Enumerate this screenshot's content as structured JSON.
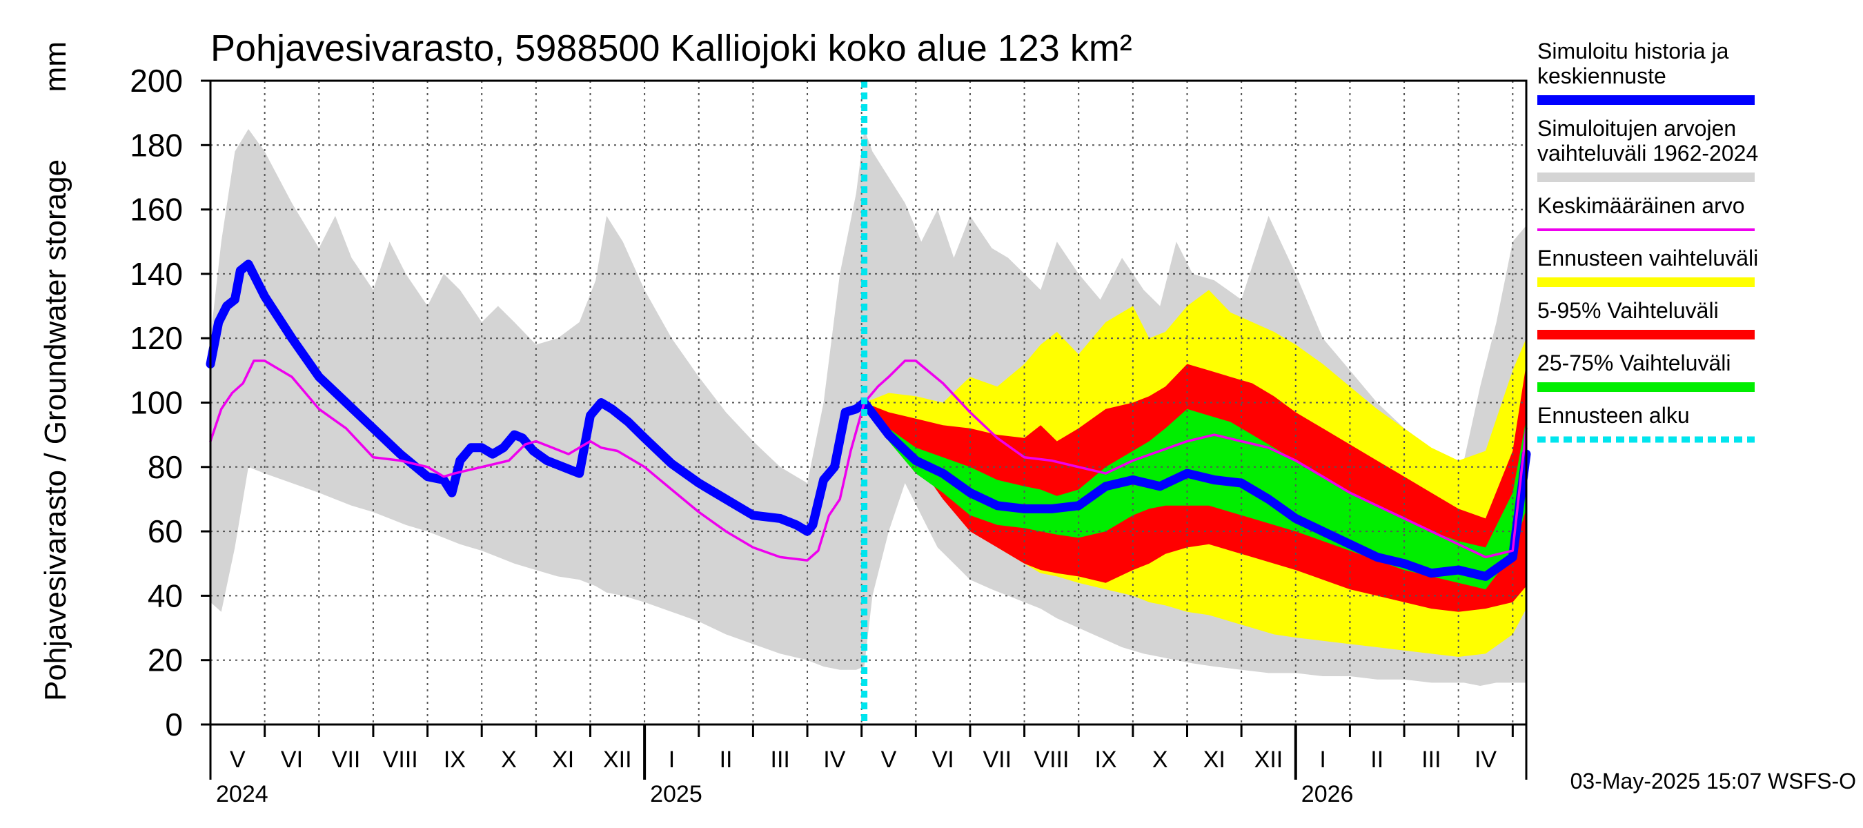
{
  "chart_data": {
    "type": "area",
    "title": "Pohjavesivarasto, 5988500 Kalliojoki koko alue 123 km²",
    "ylabel": "Pohjavesivarasto / Groundwater storage",
    "yunit": "mm",
    "ylim": [
      0,
      200
    ],
    "yticks": [
      0,
      20,
      40,
      60,
      80,
      100,
      120,
      140,
      160,
      180,
      200
    ],
    "xlim": [
      0,
      24.25
    ],
    "month_labels": [
      "V",
      "VI",
      "VII",
      "VIII",
      "IX",
      "X",
      "XI",
      "XII",
      "I",
      "II",
      "III",
      "IV",
      "V",
      "VI",
      "VII",
      "VIII",
      "IX",
      "X",
      "XI",
      "XII",
      "I",
      "II",
      "III",
      "IV"
    ],
    "year_labels": [
      {
        "label": "2024",
        "month_index": 0
      },
      {
        "label": "2025",
        "month_index": 8
      },
      {
        "label": "2026",
        "month_index": 20
      }
    ],
    "forecast_start": 12.05,
    "footer": "03-May-2025 15:07 WSFS-O",
    "series": [
      {
        "name": "Simuloitujen arvojen vaihteluväli 1962-2024",
        "kind": "band",
        "color": "#d4d4d4",
        "x": [
          0,
          0.2,
          0.45,
          0.7,
          1.0,
          1.5,
          2.0,
          2.3,
          2.6,
          3.0,
          3.3,
          3.6,
          4.0,
          4.3,
          4.6,
          5.0,
          5.3,
          5.6,
          6.0,
          6.4,
          6.8,
          7.1,
          7.3,
          7.6,
          8.0,
          8.5,
          9.0,
          9.5,
          10.0,
          10.5,
          11.0,
          11.3,
          11.6,
          11.9,
          12.05,
          12.2,
          12.5,
          12.8,
          13.1,
          13.4,
          13.7,
          14.0,
          14.4,
          14.7,
          15.0,
          15.3,
          15.6,
          16.0,
          16.4,
          16.8,
          17.2,
          17.5,
          17.8,
          18.1,
          18.5,
          19.0,
          19.5,
          20.0,
          20.5,
          21.0,
          21.5,
          22.0,
          22.5,
          22.8,
          23.1,
          23.4,
          23.7,
          24.0,
          24.25
        ],
        "upper": [
          120,
          150,
          178,
          185,
          178,
          162,
          148,
          158,
          145,
          135,
          150,
          140,
          130,
          140,
          135,
          125,
          130,
          125,
          118,
          120,
          125,
          138,
          158,
          150,
          135,
          120,
          108,
          97,
          88,
          80,
          75,
          100,
          140,
          165,
          185,
          178,
          170,
          162,
          150,
          160,
          145,
          158,
          148,
          145,
          140,
          135,
          150,
          140,
          132,
          145,
          135,
          130,
          150,
          140,
          138,
          132,
          158,
          140,
          120,
          110,
          100,
          92,
          85,
          80,
          82,
          105,
          125,
          150,
          155
        ],
        "lower": [
          38,
          35,
          55,
          80,
          78,
          75,
          72,
          70,
          68,
          66,
          64,
          62,
          60,
          58,
          56,
          54,
          52,
          50,
          48,
          46,
          45,
          43,
          41,
          40,
          38,
          35,
          32,
          28,
          25,
          22,
          20,
          18,
          17,
          17,
          18,
          40,
          60,
          75,
          65,
          55,
          50,
          45,
          42,
          40,
          38,
          36,
          33,
          30,
          27,
          24,
          22,
          21,
          20,
          19,
          18,
          17,
          16,
          16,
          15,
          15,
          14,
          14,
          13,
          13,
          13,
          12,
          13,
          13,
          13
        ]
      },
      {
        "name": "Ennusteen vaihteluväli",
        "kind": "band",
        "color": "#ffff00",
        "x": [
          12.05,
          12.5,
          13.0,
          13.5,
          14.0,
          14.5,
          15.0,
          15.3,
          15.6,
          16.0,
          16.5,
          17.0,
          17.3,
          17.6,
          18.0,
          18.4,
          18.8,
          19.2,
          19.6,
          20.0,
          20.5,
          21.0,
          21.5,
          22.0,
          22.5,
          23.0,
          23.5,
          24.0,
          24.25
        ],
        "upper": [
          100,
          103,
          102,
          100,
          108,
          105,
          112,
          118,
          122,
          115,
          125,
          130,
          120,
          122,
          130,
          135,
          128,
          125,
          122,
          118,
          112,
          105,
          98,
          92,
          86,
          82,
          85,
          110,
          120
        ],
        "lower": [
          100,
          94,
          84,
          72,
          62,
          55,
          50,
          47,
          46,
          44,
          42,
          40,
          38,
          37,
          35,
          34,
          32,
          30,
          28,
          27,
          26,
          25,
          24,
          23,
          22,
          21,
          22,
          28,
          36
        ]
      },
      {
        "name": "5-95% Vaihteluväli",
        "kind": "band",
        "color": "#ff0000",
        "x": [
          12.05,
          12.5,
          13.0,
          13.5,
          14.0,
          14.5,
          15.0,
          15.3,
          15.6,
          16.0,
          16.5,
          17.0,
          17.3,
          17.6,
          18.0,
          18.4,
          18.8,
          19.2,
          19.6,
          20.0,
          20.5,
          21.0,
          21.5,
          22.0,
          22.5,
          23.0,
          23.5,
          24.0,
          24.25
        ],
        "upper": [
          100,
          97,
          95,
          93,
          92,
          90,
          89,
          93,
          88,
          92,
          98,
          100,
          102,
          105,
          112,
          110,
          108,
          106,
          102,
          97,
          92,
          87,
          82,
          77,
          72,
          67,
          64,
          85,
          112
        ],
        "lower": [
          100,
          92,
          82,
          70,
          60,
          55,
          50,
          48,
          47,
          46,
          44,
          48,
          50,
          53,
          55,
          56,
          54,
          52,
          50,
          48,
          45,
          42,
          40,
          38,
          36,
          35,
          36,
          38,
          43
        ]
      },
      {
        "name": "25-75% Vaihteluväli",
        "kind": "band",
        "color": "#00ee00",
        "x": [
          12.05,
          12.5,
          13.0,
          13.5,
          14.0,
          14.5,
          15.0,
          15.3,
          15.6,
          16.0,
          16.5,
          17.0,
          17.3,
          17.6,
          18.0,
          18.4,
          18.8,
          19.2,
          19.6,
          20.0,
          20.5,
          21.0,
          21.5,
          22.0,
          22.5,
          23.0,
          23.5,
          24.0,
          24.25
        ],
        "upper": [
          100,
          92,
          86,
          83,
          80,
          76,
          74,
          73,
          71,
          73,
          80,
          85,
          88,
          92,
          98,
          96,
          94,
          90,
          86,
          82,
          77,
          72,
          68,
          64,
          60,
          57,
          55,
          72,
          95
        ],
        "lower": [
          100,
          88,
          78,
          72,
          65,
          62,
          61,
          60,
          59,
          58,
          60,
          65,
          67,
          68,
          68,
          68,
          66,
          64,
          62,
          60,
          57,
          54,
          51,
          48,
          46,
          44,
          42,
          53,
          67
        ]
      },
      {
        "name": "Simuloitu historia ja keskiennuste",
        "kind": "line",
        "color": "#0000ff",
        "x": [
          0,
          0.15,
          0.3,
          0.45,
          0.55,
          0.7,
          0.85,
          1.0,
          1.5,
          2.0,
          2.5,
          3.0,
          3.5,
          4.0,
          4.3,
          4.45,
          4.6,
          4.8,
          5.0,
          5.2,
          5.4,
          5.6,
          5.75,
          5.95,
          6.2,
          6.5,
          6.8,
          7.0,
          7.2,
          7.4,
          7.7,
          8.0,
          8.5,
          9.0,
          9.5,
          10.0,
          10.5,
          10.8,
          11.0,
          11.1,
          11.3,
          11.5,
          11.7,
          11.9,
          12.05,
          12.5,
          13.0,
          13.5,
          14.0,
          14.5,
          15.0,
          15.5,
          16.0,
          16.5,
          17.0,
          17.5,
          18.0,
          18.5,
          19.0,
          19.5,
          20.0,
          20.5,
          21.0,
          21.5,
          22.0,
          22.5,
          23.0,
          23.5,
          24.0,
          24.25
        ],
        "y": [
          112,
          125,
          130,
          132,
          141,
          143,
          138,
          133,
          120,
          108,
          100,
          92,
          84,
          77,
          76,
          72,
          82,
          86,
          86,
          84,
          86,
          90,
          89,
          85,
          82,
          80,
          78,
          96,
          100,
          98,
          94,
          89,
          81,
          75,
          70,
          65,
          64,
          62,
          60,
          62,
          76,
          80,
          97,
          98,
          100,
          90,
          82,
          78,
          72,
          68,
          67,
          67,
          68,
          74,
          76,
          74,
          78,
          76,
          75,
          70,
          64,
          60,
          56,
          52,
          50,
          47,
          48,
          46,
          52,
          84
        ]
      },
      {
        "name": "Keskimääräinen arvo",
        "kind": "line",
        "color": "#ee00ee",
        "x": [
          0,
          0.2,
          0.4,
          0.6,
          0.8,
          1.0,
          1.5,
          2.0,
          2.5,
          3.0,
          3.5,
          4.0,
          4.3,
          4.5,
          5.0,
          5.5,
          5.8,
          6.0,
          6.3,
          6.6,
          6.8,
          7.0,
          7.2,
          7.5,
          8.0,
          8.5,
          9.0,
          9.5,
          10.0,
          10.5,
          11.0,
          11.2,
          11.4,
          11.6,
          11.8,
          12.05,
          12.3,
          12.5,
          12.8,
          13.0,
          13.5,
          14.0,
          14.5,
          15.0,
          15.5,
          16.0,
          16.5,
          17.0,
          17.5,
          18.0,
          18.5,
          19.0,
          19.5,
          20.0,
          20.5,
          21.0,
          21.5,
          22.0,
          22.5,
          23.0,
          23.5,
          24.0,
          24.25
        ],
        "y": [
          88,
          98,
          103,
          106,
          113,
          113,
          108,
          98,
          92,
          83,
          82,
          80,
          77,
          78,
          80,
          82,
          87,
          88,
          86,
          84,
          86,
          88,
          86,
          85,
          80,
          73,
          66,
          60,
          55,
          52,
          51,
          54,
          65,
          70,
          85,
          100,
          105,
          108,
          113,
          113,
          106,
          97,
          89,
          83,
          82,
          80,
          78,
          82,
          85,
          88,
          90,
          88,
          86,
          82,
          77,
          72,
          68,
          64,
          60,
          56,
          52,
          54,
          92
        ]
      },
      {
        "name": "Ennusteen alku",
        "kind": "vline",
        "color": "#00e5ee",
        "x": 12.05
      }
    ],
    "legend": [
      {
        "label_lines": [
          "Simuloitu historia ja",
          "keskiennuste"
        ],
        "color": "#0000ff",
        "style": "thick"
      },
      {
        "label_lines": [
          "Simuloitujen arvojen",
          "vaihteluväli 1962-2024"
        ],
        "color": "#d4d4d4",
        "style": "thick"
      },
      {
        "label_lines": [
          "Keskimääräinen arvo"
        ],
        "color": "#ee00ee",
        "style": "thin"
      },
      {
        "label_lines": [
          "Ennusteen vaihteluväli"
        ],
        "color": "#ffff00",
        "style": "thick"
      },
      {
        "label_lines": [
          "5-95% Vaihteluväli"
        ],
        "color": "#ff0000",
        "style": "thick"
      },
      {
        "label_lines": [
          "25-75% Vaihteluväli"
        ],
        "color": "#00ee00",
        "style": "thick"
      },
      {
        "label_lines": [
          "Ennusteen alku"
        ],
        "color": "#00e5ee",
        "style": "dashed"
      }
    ]
  }
}
